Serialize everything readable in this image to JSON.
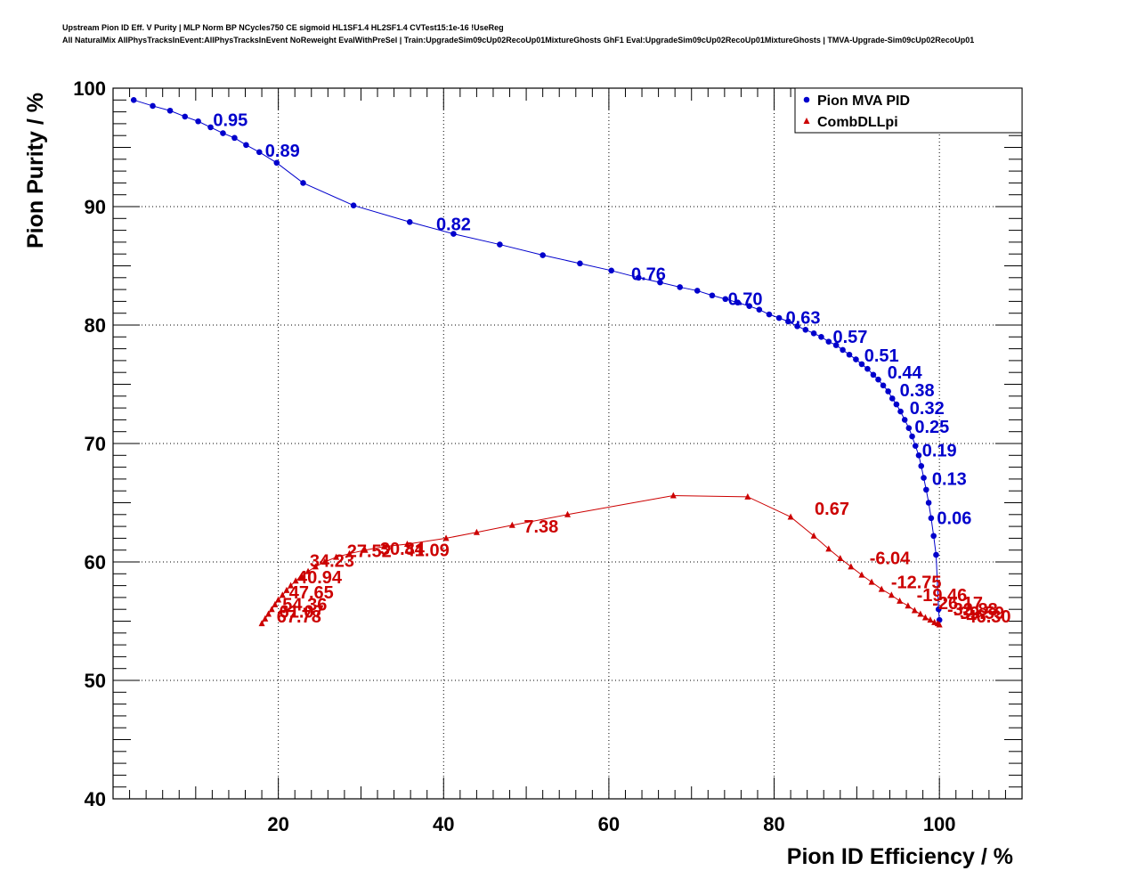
{
  "title": {
    "line1": "Upstream Pion ID Eff. V Purity | MLP Norm BP NCycles750 CE sigmoid HL1SF1.4 HL2SF1.4 CVTest15:1e-16 !UseReg",
    "line2": "All NaturalMix AllPhysTracksInEvent:AllPhysTracksInEvent NoReweight EvalWithPreSel | Train:UpgradeSim09cUp02RecoUp01MixtureGhosts GhF1 Eval:UpgradeSim09cUp02RecoUp01MixtureGhosts | TMVA-Upgrade-Sim09cUp02RecoUp01"
  },
  "chart_data": {
    "type": "scatter",
    "xlabel": "Pion ID Efficiency / %",
    "ylabel": "Pion Purity / %",
    "xlim": [
      0,
      110
    ],
    "ylim": [
      40,
      100
    ],
    "xticks": [
      20,
      40,
      60,
      80,
      100
    ],
    "yticks": [
      40,
      50,
      60,
      70,
      80,
      90,
      100
    ],
    "grid": true,
    "legend_position": "top-right",
    "series": [
      {
        "name": "Pion MVA PID",
        "color": "#0000cc",
        "marker": "circle",
        "points": [
          [
            2.5,
            99.0
          ],
          [
            4.8,
            98.5
          ],
          [
            6.9,
            98.1
          ],
          [
            8.7,
            97.6
          ],
          [
            10.3,
            97.2
          ],
          [
            11.8,
            96.7
          ],
          [
            13.3,
            96.2
          ],
          [
            14.7,
            95.8
          ],
          [
            16.1,
            95.2
          ],
          [
            17.7,
            94.6
          ],
          [
            19.8,
            93.7
          ],
          [
            23.0,
            92.0
          ],
          [
            29.1,
            90.1
          ],
          [
            35.9,
            88.7
          ],
          [
            41.2,
            87.7
          ],
          [
            46.8,
            86.8
          ],
          [
            52.0,
            85.9
          ],
          [
            56.5,
            85.2
          ],
          [
            60.3,
            84.6
          ],
          [
            63.6,
            84.0
          ],
          [
            66.2,
            83.6
          ],
          [
            68.6,
            83.2
          ],
          [
            70.7,
            82.9
          ],
          [
            72.5,
            82.5
          ],
          [
            74.1,
            82.2
          ],
          [
            75.6,
            81.9
          ],
          [
            77.0,
            81.6
          ],
          [
            78.2,
            81.3
          ],
          [
            79.4,
            80.9
          ],
          [
            80.6,
            80.6
          ],
          [
            81.7,
            80.3
          ],
          [
            82.8,
            79.9
          ],
          [
            83.8,
            79.6
          ],
          [
            84.8,
            79.3
          ],
          [
            85.7,
            79.0
          ],
          [
            86.6,
            78.6
          ],
          [
            87.5,
            78.3
          ],
          [
            88.3,
            77.9
          ],
          [
            89.1,
            77.5
          ],
          [
            89.9,
            77.1
          ],
          [
            90.6,
            76.7
          ],
          [
            91.3,
            76.3
          ],
          [
            92.0,
            75.8
          ],
          [
            92.6,
            75.4
          ],
          [
            93.2,
            74.9
          ],
          [
            93.8,
            74.4
          ],
          [
            94.3,
            73.8
          ],
          [
            94.8,
            73.3
          ],
          [
            95.3,
            72.7
          ],
          [
            95.8,
            72.0
          ],
          [
            96.3,
            71.3
          ],
          [
            96.7,
            70.6
          ],
          [
            97.1,
            69.8
          ],
          [
            97.5,
            69.0
          ],
          [
            97.8,
            68.1
          ],
          [
            98.1,
            67.1
          ],
          [
            98.4,
            66.1
          ],
          [
            98.7,
            65.0
          ],
          [
            99.0,
            63.7
          ],
          [
            99.3,
            62.2
          ],
          [
            99.6,
            60.6
          ],
          [
            99.9,
            56.0
          ],
          [
            100.0,
            55.1
          ]
        ],
        "cut_labels": [
          {
            "text": "0.95",
            "x": 14.2,
            "y": 96.8
          },
          {
            "text": "0.89",
            "x": 20.5,
            "y": 94.2
          },
          {
            "text": "0.82",
            "x": 41.2,
            "y": 88.0
          },
          {
            "text": "0.76",
            "x": 64.8,
            "y": 83.8
          },
          {
            "text": "0.70",
            "x": 76.5,
            "y": 81.7
          },
          {
            "text": "0.63",
            "x": 83.5,
            "y": 80.1
          },
          {
            "text": "0.57",
            "x": 89.2,
            "y": 78.5
          },
          {
            "text": "0.51",
            "x": 93.0,
            "y": 76.9
          },
          {
            "text": "0.44",
            "x": 95.8,
            "y": 75.5
          },
          {
            "text": "0.38",
            "x": 97.3,
            "y": 74.0
          },
          {
            "text": "0.32",
            "x": 98.5,
            "y": 72.5
          },
          {
            "text": "0.25",
            "x": 99.1,
            "y": 70.9
          },
          {
            "text": "0.19",
            "x": 100.0,
            "y": 68.9
          },
          {
            "text": "0.13",
            "x": 101.2,
            "y": 66.5
          },
          {
            "text": "0.06",
            "x": 101.8,
            "y": 63.2
          }
        ]
      },
      {
        "name": "CombDLLpi",
        "color": "#cc0000",
        "marker": "triangle",
        "points": [
          [
            18.0,
            54.8
          ],
          [
            18.4,
            55.2
          ],
          [
            18.8,
            55.6
          ],
          [
            19.2,
            56.0
          ],
          [
            19.6,
            56.4
          ],
          [
            20.0,
            56.8
          ],
          [
            20.5,
            57.2
          ],
          [
            21.0,
            57.6
          ],
          [
            21.5,
            58.0
          ],
          [
            22.1,
            58.4
          ],
          [
            22.8,
            58.8
          ],
          [
            23.6,
            59.2
          ],
          [
            24.5,
            59.6
          ],
          [
            25.6,
            60.0
          ],
          [
            27.0,
            60.4
          ],
          [
            28.6,
            60.7
          ],
          [
            30.5,
            61.0
          ],
          [
            32.8,
            61.3
          ],
          [
            35.6,
            61.5
          ],
          [
            40.3,
            62.0
          ],
          [
            44.0,
            62.5
          ],
          [
            48.3,
            63.1
          ],
          [
            55.0,
            64.0
          ],
          [
            67.8,
            65.6
          ],
          [
            76.8,
            65.5
          ],
          [
            82.0,
            63.8
          ],
          [
            84.8,
            62.2
          ],
          [
            86.6,
            61.1
          ],
          [
            88.0,
            60.3
          ],
          [
            89.3,
            59.6
          ],
          [
            90.6,
            58.9
          ],
          [
            91.8,
            58.3
          ],
          [
            93.0,
            57.7
          ],
          [
            94.2,
            57.2
          ],
          [
            95.2,
            56.7
          ],
          [
            96.2,
            56.3
          ],
          [
            97.0,
            55.9
          ],
          [
            97.7,
            55.6
          ],
          [
            98.3,
            55.3
          ],
          [
            98.9,
            55.1
          ],
          [
            99.4,
            54.9
          ],
          [
            99.8,
            54.8
          ],
          [
            100.0,
            54.7
          ]
        ],
        "cut_labels": [
          {
            "text": "7.38",
            "x": 51.8,
            "y": 62.5
          },
          {
            "text": "0.67",
            "x": 87.0,
            "y": 64.0
          },
          {
            "text": "41.09",
            "x": 38.0,
            "y": 60.5
          },
          {
            "text": "30.84",
            "x": 35.0,
            "y": 60.6
          },
          {
            "text": "27.52",
            "x": 31.0,
            "y": 60.4
          },
          {
            "text": "34.23",
            "x": 26.5,
            "y": 59.6
          },
          {
            "text": "40.94",
            "x": 25.0,
            "y": 58.2
          },
          {
            "text": "47.65",
            "x": 24.0,
            "y": 56.9
          },
          {
            "text": "54.36",
            "x": 23.2,
            "y": 55.9
          },
          {
            "text": "61.07",
            "x": 22.8,
            "y": 55.3
          },
          {
            "text": "67.78",
            "x": 22.5,
            "y": 54.9
          },
          {
            "text": "-6.04",
            "x": 94.0,
            "y": 59.8
          },
          {
            "text": "-12.75",
            "x": 97.2,
            "y": 57.8
          },
          {
            "text": "-19.46",
            "x": 100.3,
            "y": 56.7
          },
          {
            "text": "-26.17",
            "x": 102.2,
            "y": 56.0
          },
          {
            "text": "-32.88",
            "x": 104.0,
            "y": 55.5
          },
          {
            "text": "-39.59",
            "x": 104.8,
            "y": 55.2
          },
          {
            "text": "-46.30",
            "x": 105.6,
            "y": 54.9
          }
        ]
      }
    ]
  }
}
